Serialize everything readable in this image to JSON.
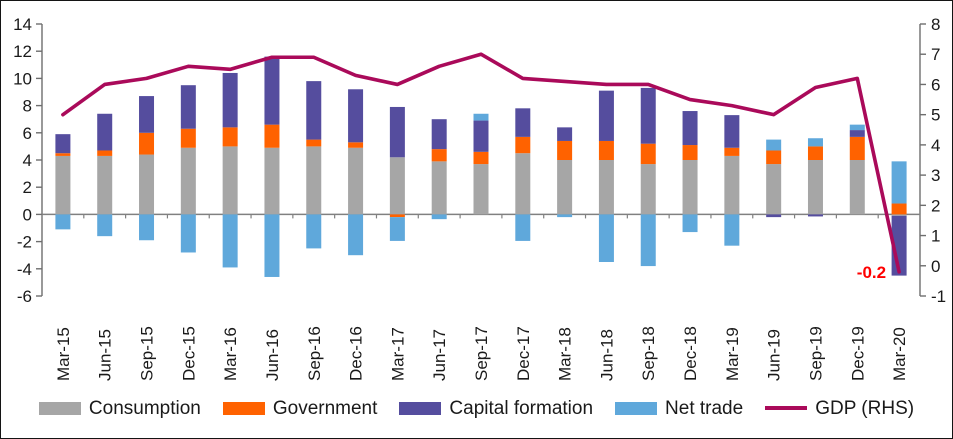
{
  "chart_data": {
    "type": "combo-stacked-bar-line",
    "title": "",
    "categories": [
      "Mar-15",
      "Jun-15",
      "Sep-15",
      "Dec-15",
      "Mar-16",
      "Jun-16",
      "Sep-16",
      "Dec-16",
      "Mar-17",
      "Jun-17",
      "Sep-17",
      "Dec-17",
      "Mar-18",
      "Jun-18",
      "Sep-18",
      "Dec-18",
      "Mar-19",
      "Jun-19",
      "Sep-19",
      "Dec-19",
      "Mar-20"
    ],
    "bar_series": [
      {
        "name": "Consumption",
        "color": "#a6a6a6",
        "values": [
          4.3,
          4.3,
          4.4,
          4.9,
          5.0,
          4.9,
          5.0,
          4.9,
          4.2,
          3.9,
          3.7,
          4.5,
          4.0,
          4.0,
          3.7,
          4.0,
          4.3,
          3.7,
          4.0,
          4.0,
          -0.1
        ]
      },
      {
        "name": "Government",
        "color": "#ff6200",
        "values": [
          0.2,
          0.4,
          1.6,
          1.4,
          1.4,
          1.7,
          0.5,
          0.4,
          -0.2,
          0.9,
          0.9,
          1.2,
          1.4,
          1.4,
          1.5,
          1.1,
          0.6,
          1.0,
          1.0,
          1.7,
          0.8
        ]
      },
      {
        "name": "Capital formation",
        "color": "#554d9e",
        "values": [
          1.4,
          2.7,
          2.7,
          3.2,
          4.0,
          5.0,
          4.3,
          3.9,
          3.7,
          2.2,
          2.3,
          2.1,
          1.0,
          3.7,
          4.1,
          2.5,
          2.4,
          -0.2,
          -0.15,
          0.5,
          -4.4
        ]
      },
      {
        "name": "Net trade",
        "color": "#5fa8db",
        "values": [
          -1.1,
          -1.6,
          -1.9,
          -2.8,
          -3.9,
          -4.6,
          -2.5,
          -3.0,
          -1.75,
          -0.35,
          0.5,
          -1.95,
          -0.2,
          -3.5,
          -3.8,
          -1.3,
          -2.3,
          0.8,
          0.6,
          0.4,
          3.1
        ]
      }
    ],
    "line_series": {
      "name": "GDP (RHS)",
      "color": "#aa0a5a",
      "axis": "right",
      "values": [
        5.0,
        6.0,
        6.2,
        6.6,
        6.5,
        6.9,
        6.9,
        6.3,
        6.0,
        6.6,
        7.0,
        6.2,
        6.1,
        6.0,
        6.0,
        5.5,
        5.3,
        5.0,
        5.9,
        6.2,
        -0.2
      ]
    },
    "left_axis": {
      "min": -6,
      "max": 14,
      "ticks": [
        14,
        12,
        10,
        8,
        6,
        4,
        2,
        0,
        -2,
        -4,
        -6
      ]
    },
    "right_axis": {
      "min": -1,
      "max": 8,
      "ticks": [
        8,
        7,
        6,
        5,
        4,
        3,
        2,
        1,
        0,
        -1
      ]
    },
    "annotation": {
      "text": "-0.2",
      "color": "#ff0000",
      "category_index": 20,
      "value": -0.2
    },
    "grid": false,
    "legend_position": "bottom",
    "axis_color": "#6e6e6e",
    "zero_line_color": "#808080"
  }
}
